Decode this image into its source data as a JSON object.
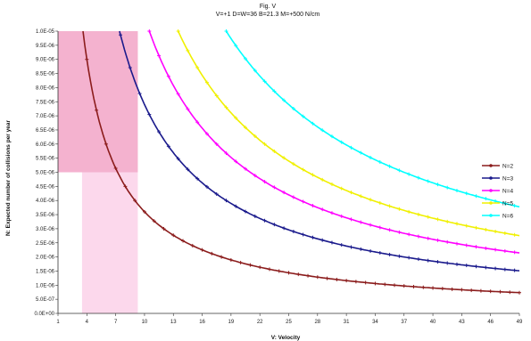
{
  "chart_data": {
    "type": "line",
    "title": "Fig. V",
    "subtitle": "V=+1 D=W=36 B=21.3 M=+500 N/cm",
    "xlabel": "V: Velocity",
    "ylabel": "N: Expected number of collisions per year",
    "x_ticks": [
      "1",
      "4",
      "7",
      "10",
      "13",
      "16",
      "19",
      "22",
      "25",
      "28",
      "31",
      "34",
      "37",
      "40",
      "43",
      "46",
      "49"
    ],
    "xlim": [
      1,
      49
    ],
    "ylim": [
      0,
      1e-05
    ],
    "y_ticks": [
      "0.0E+00",
      "5.0E-07",
      "1.0E-06",
      "1.5E-06",
      "2.0E-06",
      "2.5E-06",
      "3.0E-06",
      "3.5E-06",
      "4.0E-06",
      "4.5E-06",
      "5.0E-06",
      "5.5E-06",
      "6.0E-06",
      "6.5E-06",
      "7.0E-06",
      "7.5E-06",
      "8.0E-06",
      "8.5E-06",
      "9.0E-06",
      "9.5E-06",
      "1.0E-05"
    ],
    "highlight_regions": [
      {
        "x": [
          3.5,
          9.3
        ],
        "y": [
          0,
          1e-05
        ],
        "color": "#fcd8ec"
      },
      {
        "x": [
          1.0,
          9.3
        ],
        "y": [
          5e-06,
          1e-05
        ],
        "color": "#f4b2cf"
      }
    ],
    "legend_position": "right",
    "series": [
      {
        "name": "N=2",
        "color": "#8b1c1c",
        "k": 3.6e-05
      },
      {
        "name": "N=3",
        "color": "#1a1a8c",
        "k": 7.4e-05
      },
      {
        "name": "N=4",
        "color": "#ff00ff",
        "k": 0.000105
      },
      {
        "name": "N=5",
        "color": "#f0f000",
        "k": 0.000135
      },
      {
        "name": "N=6",
        "color": "#00ffff",
        "k": 0.000185
      }
    ]
  }
}
